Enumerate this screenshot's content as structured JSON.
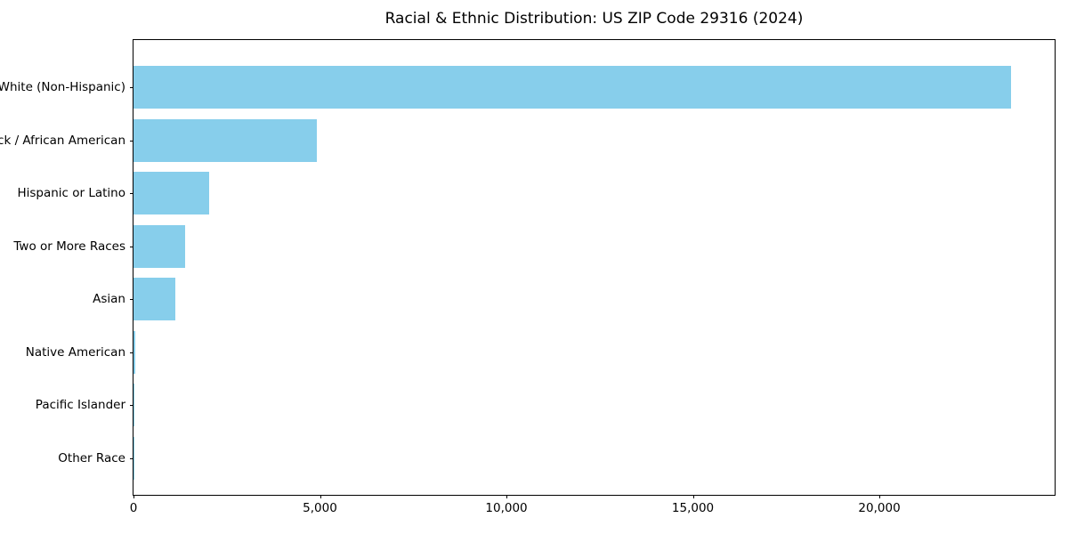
{
  "chart_data": {
    "type": "bar",
    "orientation": "horizontal",
    "title": "Racial & Ethnic Distribution: US ZIP Code 29316 (2024)",
    "categories": [
      "White (Non-Hispanic)",
      "Black / African American",
      "Hispanic or Latino",
      "Two or More Races",
      "Asian",
      "Native American",
      "Pacific Islander",
      "Other Race"
    ],
    "values": [
      23540,
      4925,
      2035,
      1390,
      1115,
      40,
      15,
      10
    ],
    "xlabel": "",
    "ylabel": "",
    "xlim": [
      0,
      24700
    ],
    "xticks": [
      0,
      5000,
      10000,
      15000,
      20000
    ],
    "xtick_labels": [
      "0",
      "5,000",
      "10,000",
      "15,000",
      "20,000"
    ],
    "bar_color": "#87CEEB",
    "background": "#FFFFFF",
    "grid": false,
    "legend": "none"
  }
}
